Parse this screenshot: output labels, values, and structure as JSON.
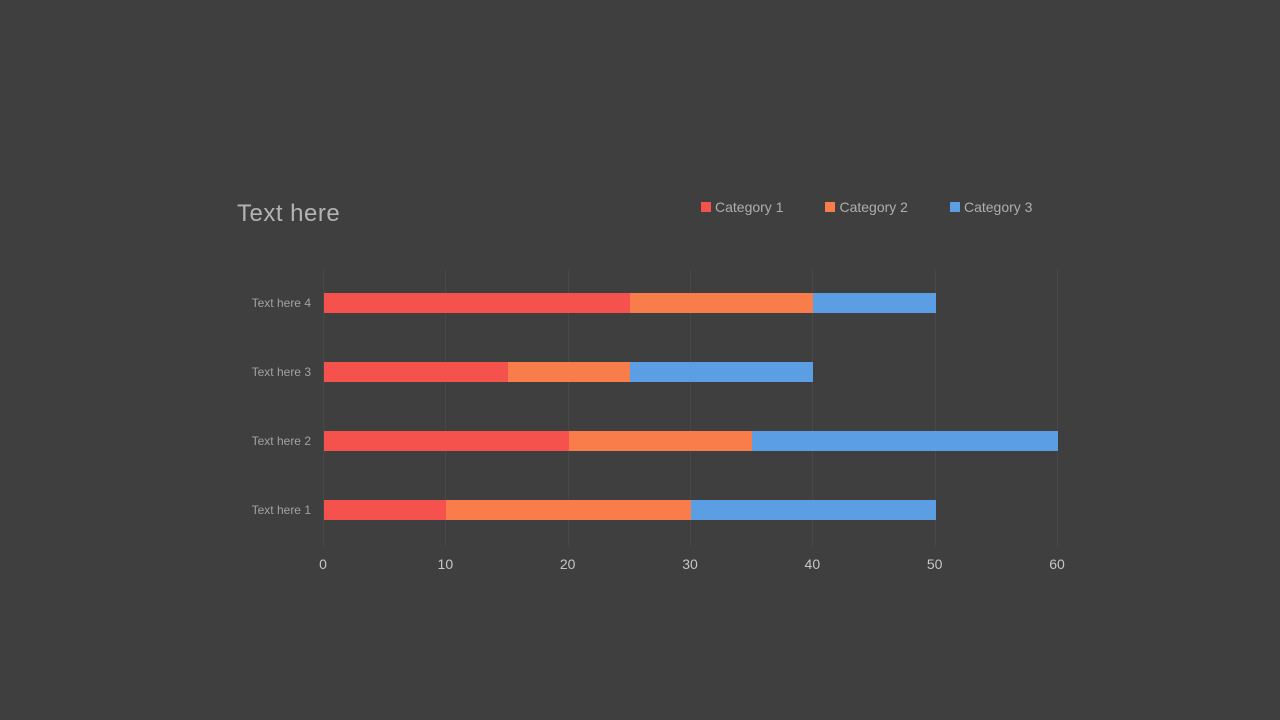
{
  "slide": {
    "title": "Text here",
    "background_color": "#3f3f3f",
    "gridline_color": "#484848"
  },
  "legend": {
    "position": "top-right",
    "items": [
      {
        "label": "Category 1",
        "color": "#f5514d"
      },
      {
        "label": "Category 2",
        "color": "#f97c4b"
      },
      {
        "label": "Category 3",
        "color": "#5b9ee3"
      }
    ]
  },
  "chart_data": {
    "type": "bar",
    "orientation": "horizontal",
    "stacked": true,
    "title": "Text here",
    "categories": [
      "Text here 4",
      "Text here 3",
      "Text here 2",
      "Text here 1"
    ],
    "series": [
      {
        "name": "Category 1",
        "color": "#f5514d",
        "values": [
          25,
          15,
          20,
          10
        ]
      },
      {
        "name": "Category 2",
        "color": "#f97c4b",
        "values": [
          15,
          10,
          15,
          20
        ]
      },
      {
        "name": "Category 3",
        "color": "#5b9ee3",
        "values": [
          10,
          15,
          25,
          20
        ]
      }
    ],
    "totals": [
      50,
      40,
      60,
      50
    ],
    "x_ticks": [
      0,
      10,
      20,
      30,
      40,
      50,
      60
    ],
    "xlim": [
      0,
      60
    ],
    "xlabel": "",
    "ylabel": "",
    "grid": "vertical",
    "legend_position": "top-right"
  }
}
